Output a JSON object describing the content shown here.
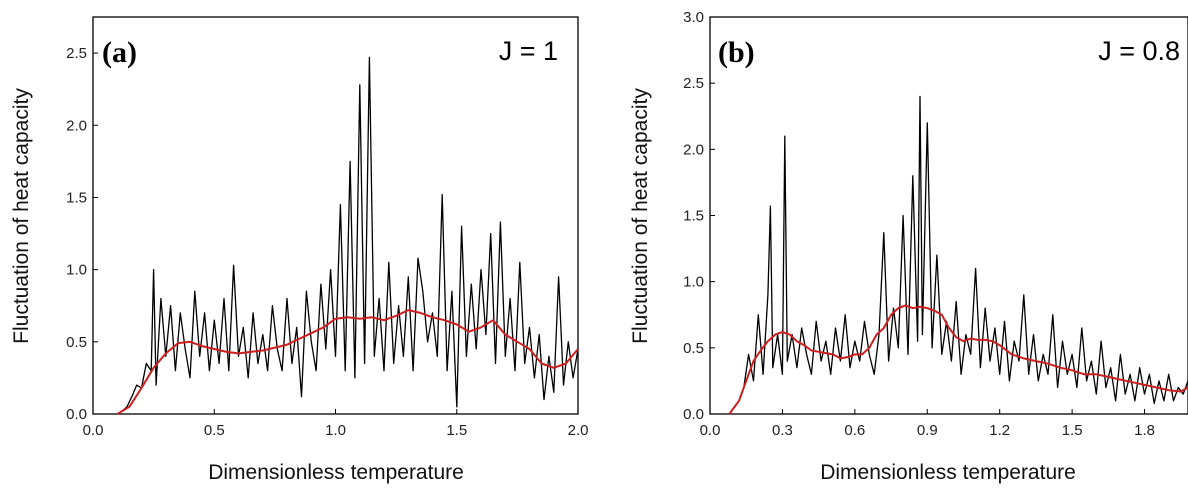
{
  "colors": {
    "raw": "#000000",
    "smooth": "#cc1f1f",
    "axis": "#000000"
  },
  "chart_data": [
    {
      "type": "line",
      "panel_label": "(a)",
      "param_label": "J = 1",
      "xlabel": "Dimensionless temperature",
      "ylabel": "Fluctuation of heat capacity",
      "xlim": [
        0.0,
        2.0
      ],
      "ylim": [
        0.0,
        2.75
      ],
      "xticks": [
        "0.0",
        "0.5",
        "1.0",
        "1.5",
        "2.0"
      ],
      "yticks": [
        "0.0",
        "0.5",
        "1.0",
        "1.5",
        "2.0",
        "2.5"
      ],
      "grid": false,
      "series": [
        {
          "style": "raw",
          "x": [
            0.1,
            0.12,
            0.14,
            0.16,
            0.18,
            0.2,
            0.22,
            0.24,
            0.25,
            0.26,
            0.28,
            0.3,
            0.32,
            0.34,
            0.36,
            0.38,
            0.4,
            0.42,
            0.44,
            0.46,
            0.48,
            0.5,
            0.52,
            0.54,
            0.56,
            0.58,
            0.6,
            0.62,
            0.64,
            0.66,
            0.68,
            0.7,
            0.72,
            0.74,
            0.76,
            0.78,
            0.8,
            0.82,
            0.84,
            0.86,
            0.88,
            0.9,
            0.92,
            0.94,
            0.96,
            0.98,
            1.0,
            1.02,
            1.04,
            1.06,
            1.08,
            1.1,
            1.12,
            1.14,
            1.16,
            1.18,
            1.2,
            1.22,
            1.24,
            1.26,
            1.28,
            1.3,
            1.32,
            1.34,
            1.36,
            1.38,
            1.4,
            1.42,
            1.44,
            1.46,
            1.48,
            1.5,
            1.52,
            1.54,
            1.56,
            1.58,
            1.6,
            1.62,
            1.64,
            1.66,
            1.68,
            1.7,
            1.72,
            1.74,
            1.76,
            1.78,
            1.8,
            1.82,
            1.84,
            1.86,
            1.88,
            1.9,
            1.92,
            1.94,
            1.96,
            1.98,
            2.0
          ],
          "y": [
            0.0,
            0.02,
            0.05,
            0.12,
            0.2,
            0.18,
            0.35,
            0.3,
            1.0,
            0.2,
            0.8,
            0.4,
            0.75,
            0.3,
            0.7,
            0.45,
            0.25,
            0.85,
            0.4,
            0.7,
            0.3,
            0.65,
            0.35,
            0.8,
            0.3,
            1.03,
            0.4,
            0.6,
            0.25,
            0.7,
            0.35,
            0.55,
            0.3,
            0.75,
            0.45,
            0.3,
            0.8,
            0.35,
            0.6,
            0.12,
            0.85,
            0.5,
            0.3,
            0.9,
            0.45,
            1.0,
            0.4,
            1.45,
            0.3,
            1.75,
            0.25,
            2.28,
            0.35,
            2.47,
            0.4,
            0.8,
            0.3,
            1.05,
            0.35,
            0.75,
            0.4,
            0.95,
            0.3,
            1.08,
            0.85,
            0.5,
            0.7,
            0.4,
            1.52,
            0.3,
            0.85,
            0.05,
            1.3,
            0.4,
            0.9,
            0.45,
            1.0,
            0.55,
            1.25,
            0.35,
            1.33,
            0.4,
            0.8,
            0.3,
            1.05,
            0.35,
            0.6,
            0.25,
            0.55,
            0.1,
            0.4,
            0.15,
            0.95,
            0.2,
            0.5,
            0.25,
            0.45
          ]
        },
        {
          "style": "smooth",
          "x": [
            0.1,
            0.15,
            0.2,
            0.25,
            0.3,
            0.35,
            0.4,
            0.45,
            0.5,
            0.55,
            0.6,
            0.65,
            0.7,
            0.75,
            0.8,
            0.85,
            0.9,
            0.95,
            1.0,
            1.05,
            1.1,
            1.15,
            1.2,
            1.25,
            1.3,
            1.35,
            1.4,
            1.45,
            1.5,
            1.55,
            1.6,
            1.65,
            1.7,
            1.75,
            1.8,
            1.85,
            1.9,
            1.95,
            2.0
          ],
          "y": [
            0.0,
            0.05,
            0.18,
            0.32,
            0.42,
            0.49,
            0.5,
            0.47,
            0.45,
            0.43,
            0.42,
            0.43,
            0.44,
            0.46,
            0.48,
            0.52,
            0.56,
            0.6,
            0.66,
            0.67,
            0.66,
            0.67,
            0.65,
            0.68,
            0.72,
            0.7,
            0.67,
            0.65,
            0.62,
            0.57,
            0.6,
            0.65,
            0.55,
            0.5,
            0.45,
            0.35,
            0.32,
            0.35,
            0.45
          ]
        }
      ]
    },
    {
      "type": "line",
      "panel_label": "(b)",
      "param_label": "J = 0.8",
      "xlabel": "Dimensionless temperature",
      "ylabel": "Fluctuation of heat capacity",
      "xlim": [
        0.0,
        1.98
      ],
      "ylim": [
        0.0,
        3.0
      ],
      "xticks": [
        "0.0",
        "0.3",
        "0.6",
        "0.9",
        "1.2",
        "1.5",
        "1.8"
      ],
      "yticks": [
        "0.0",
        "0.5",
        "1.0",
        "1.5",
        "2.0",
        "2.5",
        "3.0"
      ],
      "grid": false,
      "series": [
        {
          "style": "raw",
          "x": [
            0.08,
            0.1,
            0.12,
            0.14,
            0.16,
            0.18,
            0.2,
            0.22,
            0.24,
            0.25,
            0.26,
            0.28,
            0.3,
            0.31,
            0.32,
            0.34,
            0.36,
            0.38,
            0.4,
            0.42,
            0.44,
            0.46,
            0.48,
            0.5,
            0.52,
            0.54,
            0.56,
            0.58,
            0.6,
            0.62,
            0.64,
            0.66,
            0.68,
            0.7,
            0.72,
            0.74,
            0.76,
            0.78,
            0.8,
            0.82,
            0.84,
            0.86,
            0.87,
            0.88,
            0.9,
            0.92,
            0.94,
            0.96,
            0.98,
            1.0,
            1.02,
            1.04,
            1.06,
            1.08,
            1.1,
            1.12,
            1.14,
            1.16,
            1.18,
            1.2,
            1.22,
            1.24,
            1.26,
            1.28,
            1.3,
            1.32,
            1.34,
            1.36,
            1.38,
            1.4,
            1.42,
            1.44,
            1.46,
            1.48,
            1.5,
            1.52,
            1.54,
            1.56,
            1.58,
            1.6,
            1.62,
            1.64,
            1.66,
            1.68,
            1.7,
            1.72,
            1.74,
            1.76,
            1.78,
            1.8,
            1.82,
            1.84,
            1.86,
            1.88,
            1.9,
            1.92,
            1.94,
            1.96,
            1.98
          ],
          "y": [
            0.0,
            0.05,
            0.1,
            0.2,
            0.45,
            0.25,
            0.75,
            0.3,
            0.9,
            1.57,
            0.35,
            0.6,
            0.3,
            2.1,
            0.4,
            0.6,
            0.35,
            0.65,
            0.45,
            0.3,
            0.7,
            0.4,
            0.55,
            0.3,
            0.65,
            0.4,
            0.75,
            0.35,
            0.55,
            0.4,
            0.7,
            0.45,
            0.3,
            0.6,
            1.37,
            0.4,
            0.8,
            0.5,
            1.5,
            0.45,
            1.8,
            0.55,
            2.4,
            0.6,
            2.2,
            0.5,
            1.2,
            0.45,
            0.7,
            0.4,
            0.85,
            0.3,
            0.6,
            0.45,
            1.1,
            0.35,
            0.8,
            0.4,
            0.65,
            0.3,
            0.7,
            0.25,
            0.55,
            0.4,
            0.9,
            0.3,
            0.6,
            0.25,
            0.45,
            0.3,
            0.75,
            0.2,
            0.55,
            0.3,
            0.45,
            0.2,
            0.65,
            0.25,
            0.4,
            0.15,
            0.55,
            0.2,
            0.35,
            0.1,
            0.45,
            0.15,
            0.3,
            0.1,
            0.35,
            0.15,
            0.3,
            0.08,
            0.25,
            0.1,
            0.3,
            0.1,
            0.2,
            0.15,
            0.25
          ]
        },
        {
          "style": "smooth",
          "x": [
            0.08,
            0.12,
            0.15,
            0.18,
            0.21,
            0.24,
            0.27,
            0.3,
            0.33,
            0.36,
            0.39,
            0.42,
            0.45,
            0.48,
            0.51,
            0.54,
            0.57,
            0.6,
            0.63,
            0.66,
            0.69,
            0.72,
            0.75,
            0.78,
            0.81,
            0.84,
            0.87,
            0.9,
            0.93,
            0.96,
            0.99,
            1.02,
            1.05,
            1.08,
            1.11,
            1.14,
            1.17,
            1.2,
            1.25,
            1.3,
            1.35,
            1.4,
            1.45,
            1.5,
            1.55,
            1.6,
            1.65,
            1.7,
            1.75,
            1.8,
            1.85,
            1.9,
            1.95,
            1.98
          ],
          "y": [
            0.0,
            0.1,
            0.25,
            0.4,
            0.48,
            0.55,
            0.6,
            0.62,
            0.6,
            0.55,
            0.52,
            0.48,
            0.47,
            0.46,
            0.45,
            0.42,
            0.43,
            0.45,
            0.45,
            0.5,
            0.6,
            0.65,
            0.75,
            0.8,
            0.82,
            0.8,
            0.81,
            0.8,
            0.78,
            0.75,
            0.65,
            0.58,
            0.55,
            0.57,
            0.56,
            0.56,
            0.55,
            0.52,
            0.45,
            0.42,
            0.4,
            0.38,
            0.35,
            0.33,
            0.3,
            0.3,
            0.28,
            0.26,
            0.24,
            0.22,
            0.2,
            0.18,
            0.17,
            0.2
          ]
        }
      ]
    }
  ]
}
